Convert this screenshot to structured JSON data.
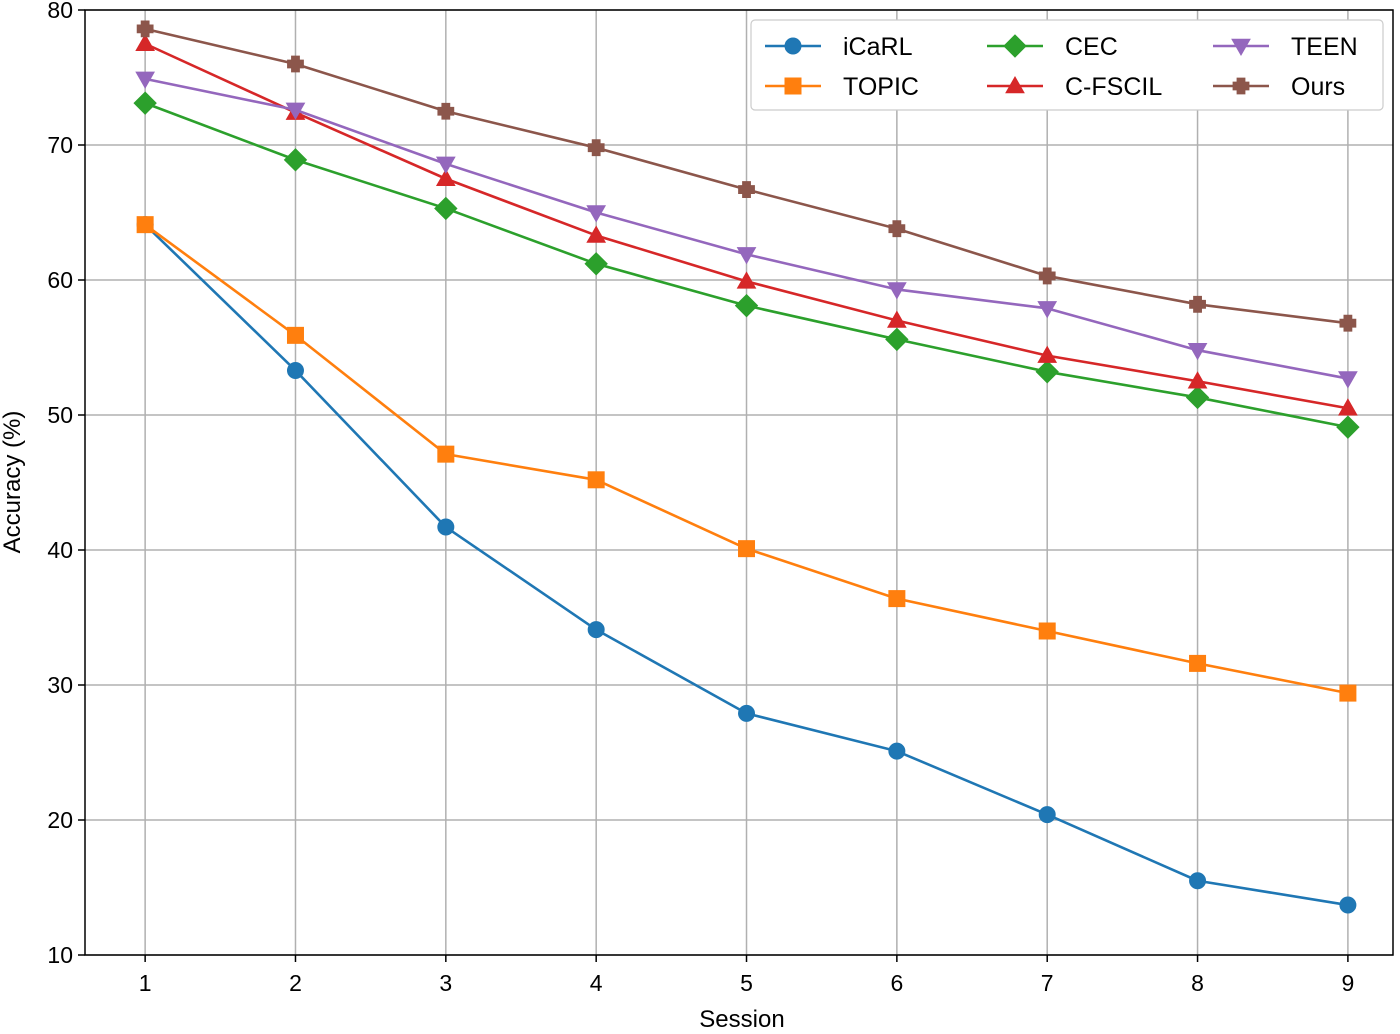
{
  "chart_data": {
    "type": "line",
    "title": "",
    "xlabel": "Session",
    "ylabel": "Accuracy (%)",
    "x": [
      1,
      2,
      3,
      4,
      5,
      6,
      7,
      8,
      9
    ],
    "xticks": [
      "1",
      "2",
      "3",
      "4",
      "5",
      "6",
      "7",
      "8",
      "9"
    ],
    "yticks": [
      "10",
      "20",
      "30",
      "40",
      "50",
      "60",
      "70",
      "80"
    ],
    "xlim": [
      0.6,
      9.3
    ],
    "ylim": [
      10,
      80
    ],
    "grid": true,
    "legend_position": "top-right",
    "series": [
      {
        "name": "iCaRL",
        "color": "#1f77b4",
        "marker": "circle",
        "values": [
          64.1,
          53.3,
          41.7,
          34.1,
          27.9,
          25.1,
          20.4,
          15.5,
          13.7
        ]
      },
      {
        "name": "TOPIC",
        "color": "#ff7f0e",
        "marker": "square",
        "values": [
          64.1,
          55.9,
          47.1,
          45.2,
          40.1,
          36.4,
          34.0,
          31.6,
          29.4
        ]
      },
      {
        "name": "CEC",
        "color": "#2ca02c",
        "marker": "diamond",
        "values": [
          73.1,
          68.9,
          65.3,
          61.2,
          58.1,
          55.6,
          53.2,
          51.3,
          49.1
        ]
      },
      {
        "name": "C-FSCIL",
        "color": "#d62728",
        "marker": "triangle-up",
        "values": [
          77.5,
          72.4,
          67.5,
          63.3,
          59.9,
          57.0,
          54.4,
          52.5,
          50.5
        ]
      },
      {
        "name": "TEEN",
        "color": "#9467bd",
        "marker": "triangle-down",
        "values": [
          74.9,
          72.6,
          68.6,
          65.0,
          61.9,
          59.3,
          57.9,
          54.8,
          52.7
        ]
      },
      {
        "name": "Ours",
        "color": "#8c564b",
        "marker": "plus",
        "values": [
          78.6,
          76.0,
          72.5,
          69.8,
          66.7,
          63.8,
          60.3,
          58.2,
          56.8
        ]
      }
    ]
  }
}
